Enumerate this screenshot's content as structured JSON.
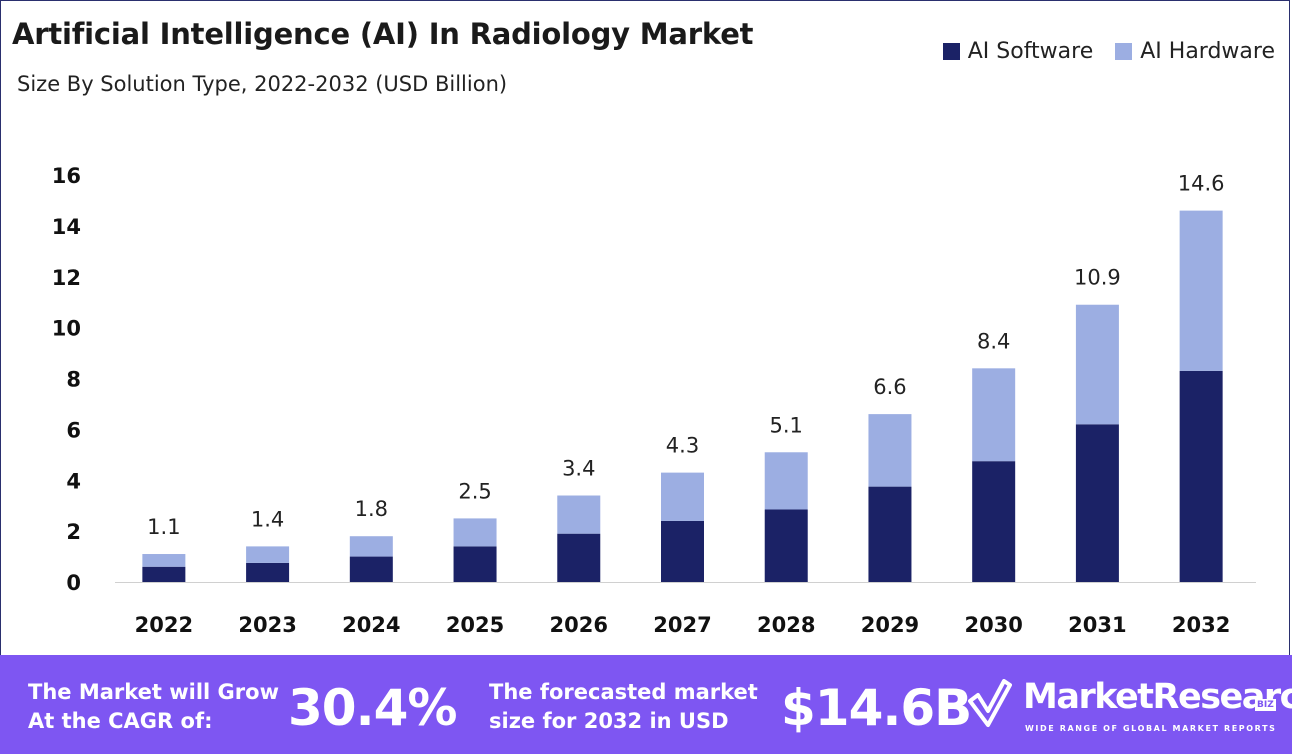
{
  "header": {
    "title": "Artificial Intelligence (AI) In Radiology Market",
    "subtitle": "Size By Solution Type, 2022-2032 (USD Billion)"
  },
  "legend": [
    {
      "label": "AI Software",
      "color": "#1b2266"
    },
    {
      "label": "AI Hardware",
      "color": "#9caee2"
    }
  ],
  "chart_data": {
    "type": "bar",
    "stacked": true,
    "categories": [
      "2022",
      "2023",
      "2024",
      "2025",
      "2026",
      "2027",
      "2028",
      "2029",
      "2030",
      "2031",
      "2032"
    ],
    "series": [
      {
        "name": "AI Software",
        "color": "#1b2266",
        "values": [
          0.6,
          0.75,
          1.0,
          1.4,
          1.9,
          2.4,
          2.85,
          3.75,
          4.75,
          6.2,
          8.3
        ]
      },
      {
        "name": "AI Hardware",
        "color": "#9caee2",
        "values": [
          0.5,
          0.65,
          0.8,
          1.1,
          1.5,
          1.9,
          2.25,
          2.85,
          3.65,
          4.7,
          6.3
        ]
      }
    ],
    "totals": [
      "1.1",
      "1.4",
      "1.8",
      "2.5",
      "3.4",
      "4.3",
      "5.1",
      "6.6",
      "8.4",
      "10.9",
      "14.6"
    ],
    "yticks": [
      "0",
      "2",
      "4",
      "6",
      "8",
      "10",
      "12",
      "14",
      "16"
    ],
    "ylim": [
      0,
      16
    ],
    "grid": false,
    "legend_position": "top-right"
  },
  "footer": {
    "cagr_text_line1": "The Market will Grow",
    "cagr_text_line2": "At the CAGR of:",
    "cagr_value": "30.4%",
    "forecast_text_line1": "The forecasted market",
    "forecast_text_line2": "size for 2032 in USD",
    "forecast_value": "$14.6B",
    "brand_name": "MarketResearch",
    "brand_badge": "BIZ",
    "brand_tagline": "WIDE RANGE OF GLOBAL MARKET REPORTS"
  }
}
